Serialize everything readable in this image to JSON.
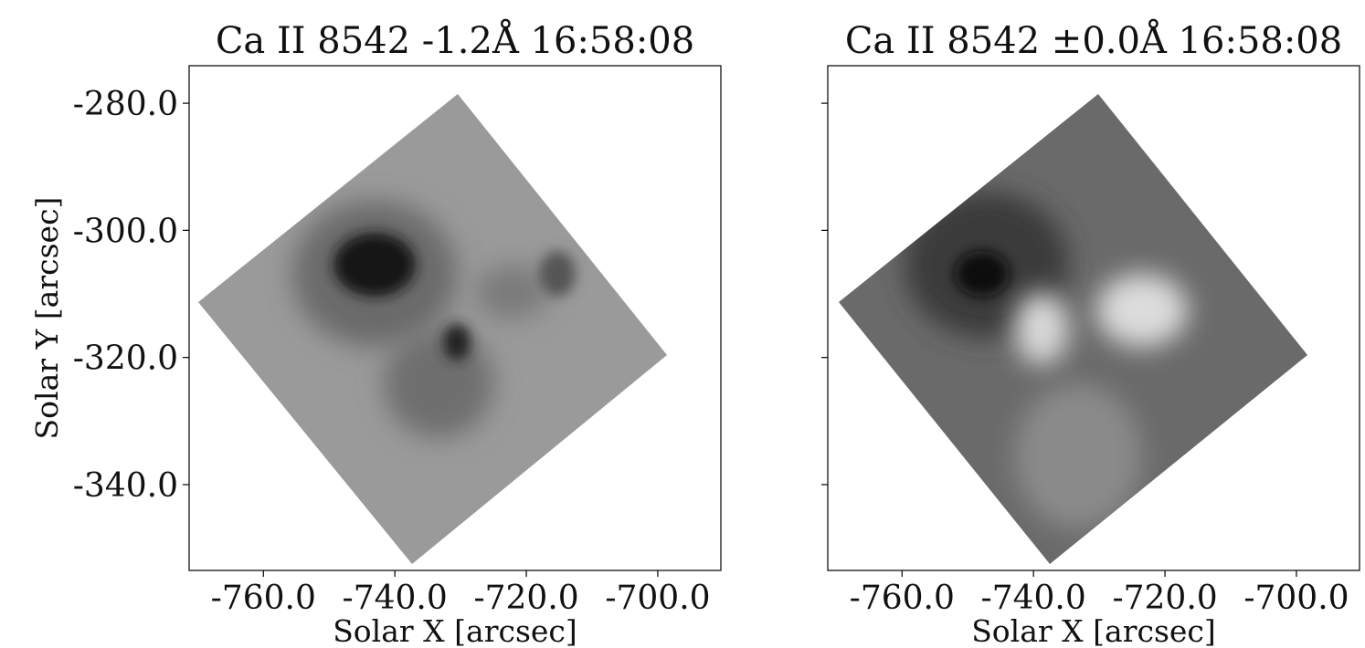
{
  "chart_data": [
    {
      "type": "image",
      "title": "Ca II 8542 -1.2Å 16:58:08",
      "xlabel": "Solar X [arcsec]",
      "ylabel": "Solar Y [arcsec]",
      "xlim": [
        -771.3,
        -690.4
      ],
      "ylim": [
        -353.5,
        -274.1
      ],
      "xticks": [
        {
          "value": -760,
          "label": "-760.0"
        },
        {
          "value": -740,
          "label": "-740.0"
        },
        {
          "value": -720,
          "label": "-720.0"
        },
        {
          "value": -700,
          "label": "-700.0"
        }
      ],
      "yticks": [
        {
          "value": -280,
          "label": "-280.0"
        },
        {
          "value": -300,
          "label": "-300.0"
        },
        {
          "value": -320,
          "label": "-320.0"
        },
        {
          "value": -340,
          "label": "-340.0"
        }
      ]
    },
    {
      "type": "image",
      "title": "Ca II 8542 ±0.0Å 16:58:08",
      "xlabel": "Solar X [arcsec]",
      "xlim": [
        -771.3,
        -690.4
      ],
      "ylim": [
        -353.5,
        -274.1
      ],
      "xticks": [
        {
          "value": -760,
          "label": "-760.0"
        },
        {
          "value": -740,
          "label": "-740.0"
        },
        {
          "value": -720,
          "label": "-720.0"
        },
        {
          "value": -700,
          "label": "-700.0"
        }
      ],
      "yticks": [
        -280,
        -300,
        -320,
        -340
      ]
    }
  ]
}
